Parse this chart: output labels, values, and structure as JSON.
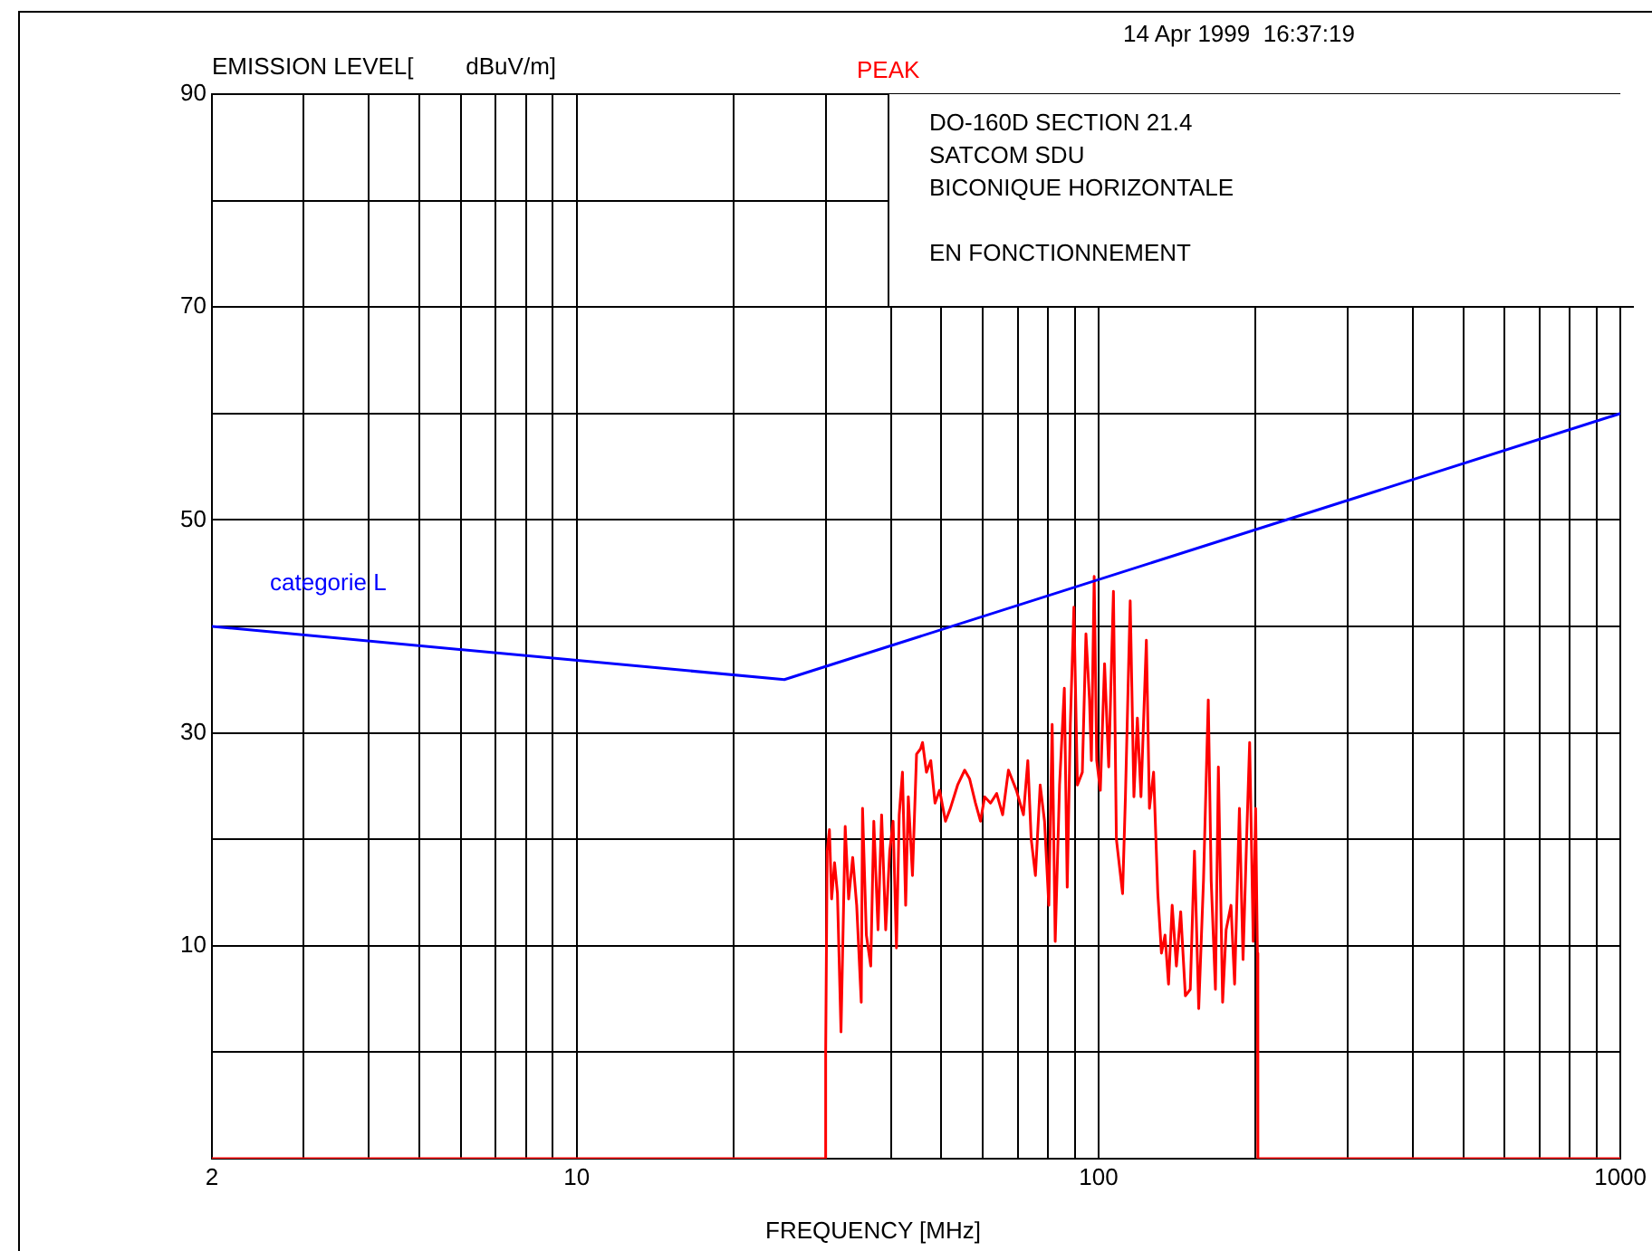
{
  "chart_data": {
    "type": "line",
    "xlabel": "FREQUENCY [MHz]",
    "ylabel": "EMISSION LEVEL[        dBuV/m]",
    "annotations": [
      "14 Apr 1999  16:37:19",
      "DO-160D SECTION 21.4",
      "SATCOM SDU",
      "BICONIQUE HORIZONTALE",
      "EN FONCTIONNEMENT"
    ],
    "log": "x",
    "grid": true,
    "legend": false,
    "marker": "none",
    "line_style": "solid",
    "xlim": [
      2,
      1000
    ],
    "xticks": [
      2,
      {
        "value": 3,
        "label": null
      },
      {
        "value": 4,
        "label": null
      },
      {
        "value": 5,
        "label": null
      },
      {
        "value": 6,
        "label": null
      },
      {
        "value": 7,
        "label": null
      },
      {
        "value": 8,
        "label": null
      },
      {
        "value": 9,
        "label": null
      },
      10,
      {
        "value": 20,
        "label": null
      },
      {
        "value": 30,
        "label": null
      },
      {
        "value": 40,
        "label": null
      },
      {
        "value": 50,
        "label": null
      },
      {
        "value": 60,
        "label": null
      },
      {
        "value": 70,
        "label": null
      },
      {
        "value": 80,
        "label": null
      },
      {
        "value": 90,
        "label": null
      },
      100,
      {
        "value": 200,
        "label": null
      },
      {
        "value": 300,
        "label": null
      },
      {
        "value": 400,
        "label": null
      },
      {
        "value": 500,
        "label": null
      },
      {
        "value": 600,
        "label": null
      },
      {
        "value": 700,
        "label": null
      },
      {
        "value": 800,
        "label": null
      },
      {
        "value": 900,
        "label": null
      },
      1000
    ],
    "ylim": [
      -10,
      90
    ],
    "yticks": [
      {
        "value": -10,
        "label": null
      },
      {
        "value": 0,
        "label": null
      },
      10,
      {
        "value": 20,
        "label": null
      },
      30,
      {
        "value": 40,
        "label": null
      },
      50,
      {
        "value": 60,
        "label": null
      },
      70,
      {
        "value": 80,
        "label": null
      },
      90
    ],
    "series": [
      {
        "name": "categorie L",
        "color": "#0000ff",
        "x": [
          2,
          25,
          1000
        ],
        "values": [
          40,
          35,
          60
        ]
      },
      {
        "name": "PEAK",
        "color": "#ff0000",
        "x": [
          2,
          30,
          30,
          30.2,
          30.5,
          30.8,
          31.2,
          31.6,
          32.1,
          32.7,
          33.2,
          33.8,
          34.4,
          35.1,
          35.3,
          35.9,
          36.6,
          37.1,
          37.8,
          38.4,
          39.1,
          39.8,
          40.4,
          41.0,
          41.5,
          42.1,
          42.7,
          43.2,
          44.0,
          44.8,
          45.6,
          46.0,
          46.8,
          47.7,
          48.6,
          49.6,
          50.9,
          52.0,
          53.7,
          55.4,
          56.6,
          58.1,
          59.4,
          60.5,
          62.1,
          63.8,
          65.5,
          67.2,
          69.6,
          71.8,
          73.2,
          74.3,
          75.7,
          77.3,
          78.8,
          80.3,
          81.5,
          82.6,
          84.2,
          86.0,
          87.1,
          88.3,
          89.7,
          91.1,
          93.1,
          94.6,
          96.1,
          96.9,
          98.1,
          99.2,
          100.8,
          102.7,
          104.6,
          106.8,
          108.2,
          111.2,
          112.6,
          115.0,
          116.9,
          118.7,
          120.6,
          123.5,
          125.2,
          127.5,
          129.9,
          132.0,
          134.1,
          136.2,
          138.4,
          141.0,
          143.7,
          146.7,
          149.9,
          152.7,
          155.6,
          158.9,
          162.3,
          164.4,
          167.5,
          169.7,
          172.9,
          175.6,
          179.4,
          182.3,
          186.2,
          189.2,
          192.2,
          194.8,
          197.9,
          200.0,
          201.6,
          202,
          1000
        ],
        "values": [
          -10,
          -10,
          0,
          18.9,
          20.9,
          14.4,
          17.8,
          14.9,
          1.9,
          21.2,
          14.4,
          18.3,
          13.8,
          4.7,
          22.9,
          11,
          8.1,
          21.7,
          11.5,
          22.3,
          11.5,
          18.9,
          21.7,
          9.8,
          22.3,
          26.3,
          13.8,
          24,
          16.6,
          28,
          28.5,
          29.1,
          26.3,
          27.4,
          23.4,
          24.6,
          21.7,
          22.9,
          25.1,
          26.5,
          25.7,
          23.4,
          21.7,
          24,
          23.4,
          24.3,
          22.3,
          26.5,
          24.6,
          22.3,
          27.4,
          20,
          16.6,
          25.1,
          21.7,
          13.8,
          30.8,
          10.4,
          25.1,
          34.2,
          15.5,
          30.8,
          41.8,
          25.1,
          26.3,
          39.3,
          33.1,
          27.4,
          44.7,
          27.4,
          24.6,
          36.5,
          26.8,
          43.3,
          20,
          14.9,
          24,
          42.4,
          24,
          31.4,
          24,
          38.7,
          22.9,
          26.3,
          14.9,
          9.3,
          11,
          6.4,
          13.8,
          8.1,
          13.2,
          5.3,
          5.9,
          18.9,
          4.1,
          16.1,
          33.1,
          16.1,
          5.9,
          26.8,
          4.7,
          11.5,
          13.8,
          6.4,
          22.9,
          8.7,
          20,
          29.1,
          10.4,
          22.9,
          9.3,
          -10,
          -10
        ]
      }
    ]
  }
}
